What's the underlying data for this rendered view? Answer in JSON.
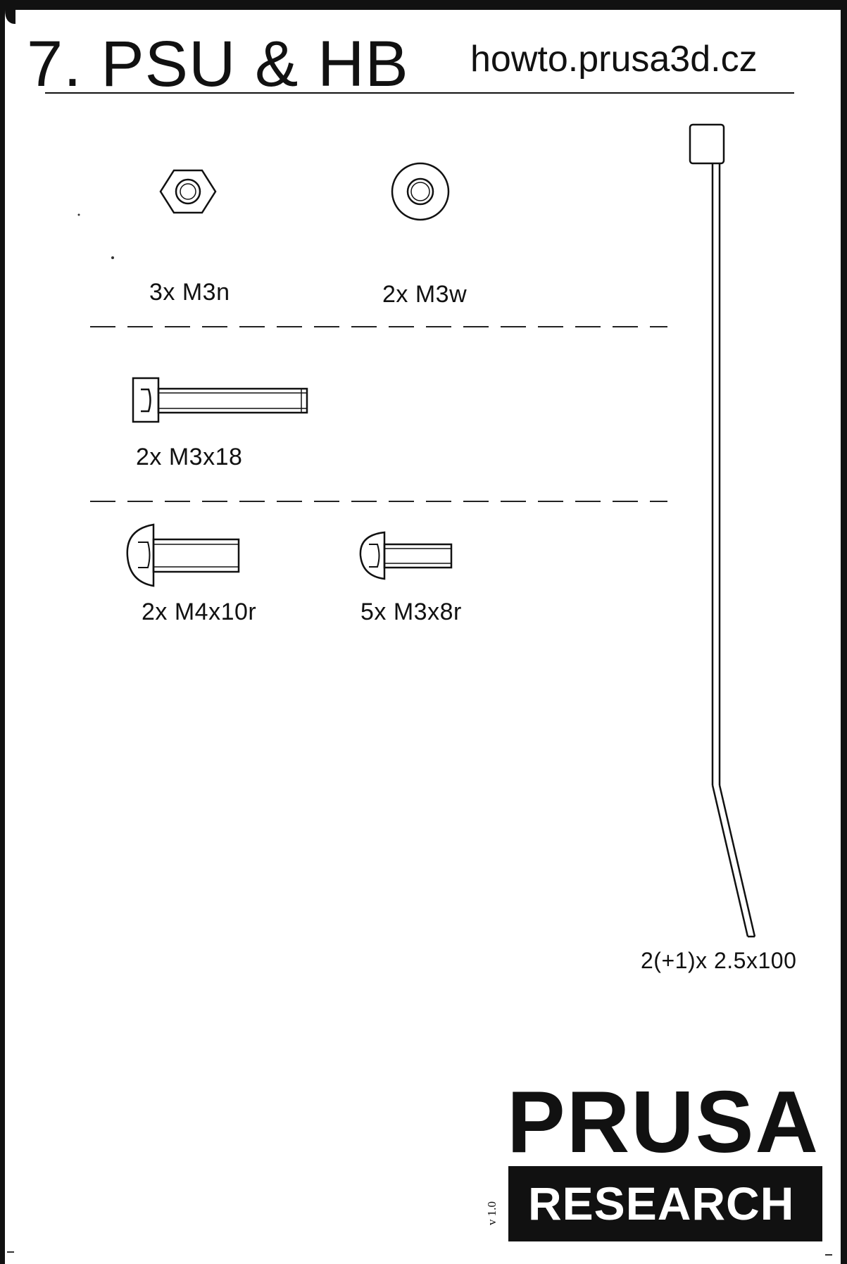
{
  "header": {
    "title": "7. PSU & HB",
    "url": "howto.prusa3d.cz"
  },
  "parts": {
    "nut": {
      "label": "3x M3n"
    },
    "washer": {
      "label": "2x M3w"
    },
    "m3x18": {
      "label": "2x M3x18"
    },
    "m4x10r": {
      "label": "2x M4x10r"
    },
    "m3x8r": {
      "label": "5x M3x8r"
    },
    "zip_tie": {
      "label": "2(+1)x 2.5x100"
    }
  },
  "logo": {
    "top": "PRUSA",
    "bottom": "RESEARCH",
    "version": "v 1.0"
  },
  "colors": {
    "ink": "#111111",
    "paper": "#ffffff"
  }
}
